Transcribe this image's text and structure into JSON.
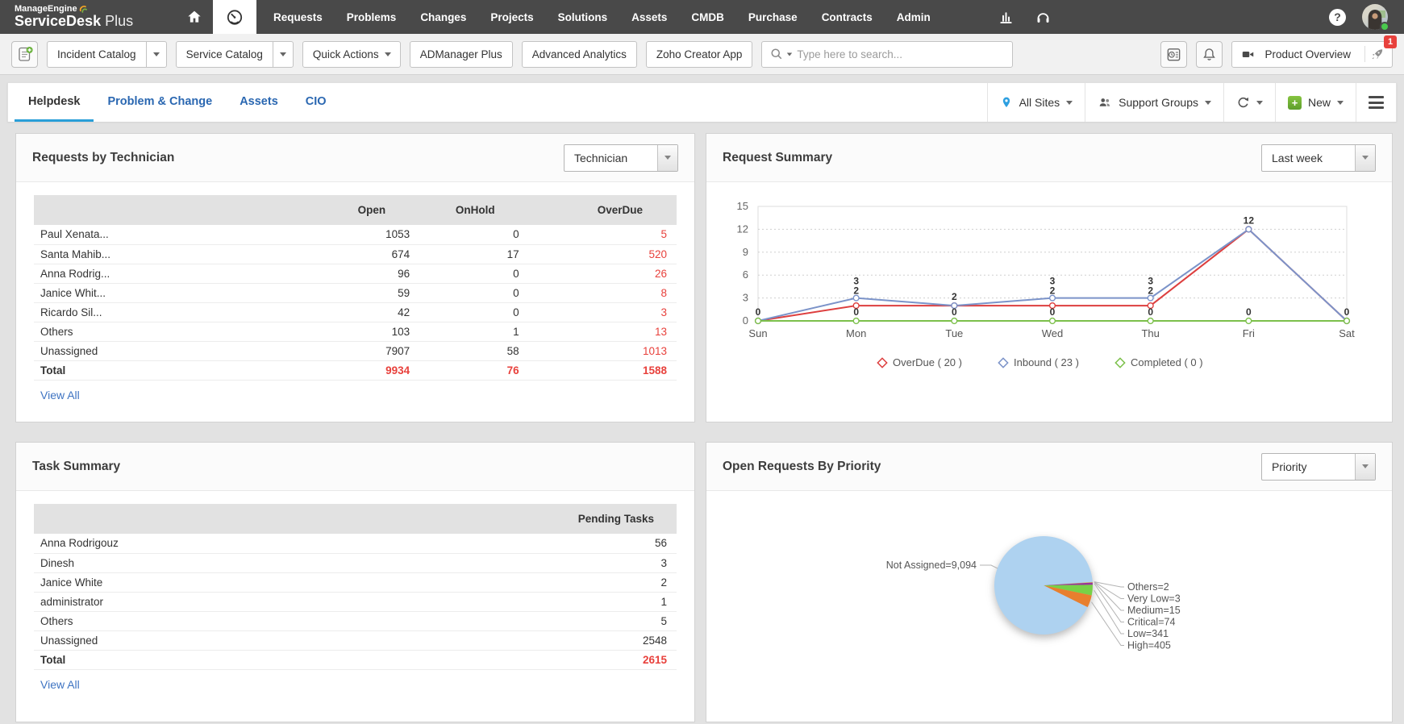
{
  "brand": {
    "company": "ManageEngine",
    "product": "ServiceDesk",
    "suffix": "Plus"
  },
  "top_nav": {
    "items": [
      "Requests",
      "Problems",
      "Changes",
      "Projects",
      "Solutions",
      "Assets",
      "CMDB",
      "Purchase",
      "Contracts",
      "Admin"
    ]
  },
  "toolbar": {
    "incident_catalog": "Incident Catalog",
    "service_catalog": "Service Catalog",
    "quick_actions": "Quick Actions",
    "admanager_plus": "ADManager Plus",
    "advanced_analytics": "Advanced Analytics",
    "zoho_creator_app": "Zoho Creator App",
    "search_placeholder": "Type here to search...",
    "product_overview": "Product Overview",
    "overview_badge": "1"
  },
  "tabs": {
    "items": [
      {
        "label": "Helpdesk",
        "active": true
      },
      {
        "label": "Problem & Change",
        "active": false
      },
      {
        "label": "Assets",
        "active": false
      },
      {
        "label": "CIO",
        "active": false
      }
    ],
    "all_sites": "All Sites",
    "support_groups": "Support Groups",
    "new_label": "New"
  },
  "requests_by_technician": {
    "title": "Requests by Technician",
    "filter": "Technician",
    "columns": [
      "Open",
      "OnHold",
      "OverDue"
    ],
    "rows": [
      {
        "name": "Paul Xenata...",
        "open": "1053",
        "onhold": "0",
        "overdue": "5"
      },
      {
        "name": "Santa Mahib...",
        "open": "674",
        "onhold": "17",
        "overdue": "520"
      },
      {
        "name": "Anna Rodrig...",
        "open": "96",
        "onhold": "0",
        "overdue": "26"
      },
      {
        "name": "Janice Whit...",
        "open": "59",
        "onhold": "0",
        "overdue": "8"
      },
      {
        "name": "Ricardo Sil...",
        "open": "42",
        "onhold": "0",
        "overdue": "3"
      },
      {
        "name": "Others",
        "open": "103",
        "onhold": "1",
        "overdue": "13"
      },
      {
        "name": "Unassigned",
        "open": "7907",
        "onhold": "58",
        "overdue": "1013"
      }
    ],
    "total": {
      "name": "Total",
      "open": "9934",
      "onhold": "76",
      "overdue": "1588"
    },
    "view_all": "View All"
  },
  "request_summary": {
    "title": "Request Summary",
    "filter": "Last week",
    "chart_data": {
      "type": "line",
      "x": [
        "Sun",
        "Mon",
        "Tue",
        "Wed",
        "Thu",
        "Fri",
        "Sat"
      ],
      "series": [
        {
          "name": "OverDue",
          "total": 20,
          "color": "#dd3f3f",
          "values": [
            0,
            2,
            2,
            2,
            2,
            12,
            0
          ]
        },
        {
          "name": "Inbound",
          "total": 23,
          "color": "#7b93c9",
          "values": [
            0,
            3,
            2,
            3,
            3,
            12,
            0
          ]
        },
        {
          "name": "Completed",
          "total": 0,
          "color": "#7cc04b",
          "values": [
            0,
            0,
            0,
            0,
            0,
            0,
            0
          ]
        }
      ],
      "ylim": [
        0,
        15
      ],
      "yticks": [
        0,
        3,
        6,
        9,
        12,
        15
      ],
      "grid": "dotted-horizontal",
      "legend_position": "bottom"
    }
  },
  "task_summary": {
    "title": "Task Summary",
    "column": "Pending Tasks",
    "rows": [
      {
        "name": "Anna Rodrigouz",
        "value": "56"
      },
      {
        "name": "Dinesh",
        "value": "3"
      },
      {
        "name": "Janice White",
        "value": "2"
      },
      {
        "name": "administrator",
        "value": "1"
      },
      {
        "name": "Others",
        "value": "5"
      },
      {
        "name": "Unassigned",
        "value": "2548"
      }
    ],
    "total": {
      "name": "Total",
      "value": "2615"
    },
    "view_all": "View All"
  },
  "open_requests_by_priority": {
    "title": "Open Requests By Priority",
    "filter": "Priority",
    "chart_data": {
      "type": "pie",
      "slices": [
        {
          "label": "Others",
          "value": 2,
          "display": "Others=2",
          "color": "#a6a6a6"
        },
        {
          "label": "Very Low",
          "value": 3,
          "display": "Very Low=3",
          "color": "#5bc0de"
        },
        {
          "label": "Medium",
          "value": 15,
          "display": "Medium=15",
          "color": "#f0c020"
        },
        {
          "label": "Critical",
          "value": 74,
          "display": "Critical=74",
          "color": "#993399"
        },
        {
          "label": "Low",
          "value": 341,
          "display": "Low=341",
          "color": "#77d147"
        },
        {
          "label": "High",
          "value": 405,
          "display": "High=405",
          "color": "#e87f2e"
        },
        {
          "label": "Not Assigned",
          "value": 9094,
          "display": "Not Assigned=9,094",
          "color": "#aed2f0"
        }
      ],
      "total": 9934
    }
  }
}
